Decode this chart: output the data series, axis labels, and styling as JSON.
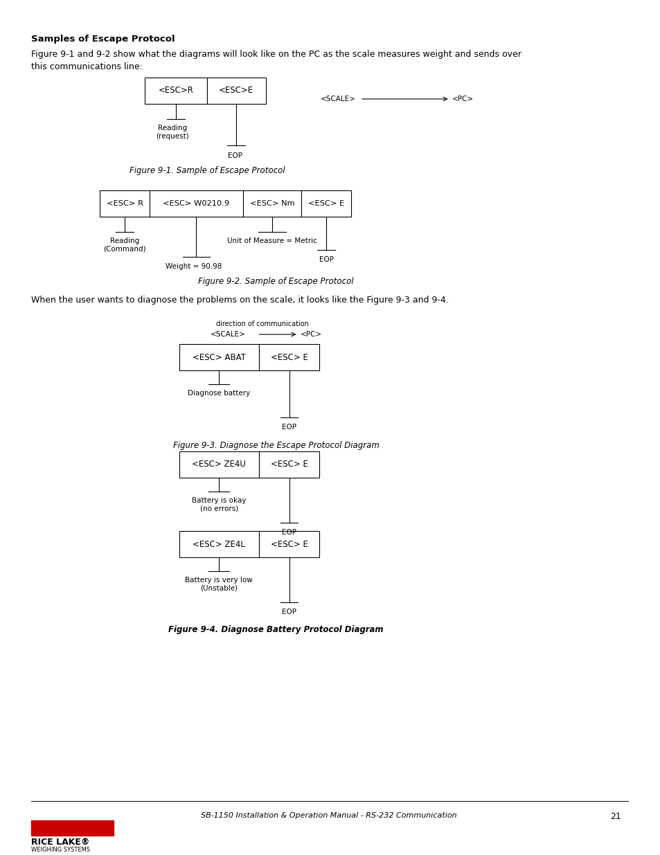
{
  "bg_color": "#ffffff",
  "title_bold": "Samples of Escape Protocol",
  "intro_text": "Figure 9-1 and 9-2 show what the diagrams will look like on the PC as the scale measures weight and sends over\nthis communications line:",
  "fig1_caption": "Figure 9-1. Sample of Escape Protocol",
  "fig2_caption": "Figure 9-2. Sample of Escape Protocol",
  "fig3_caption": "Figure 9-3. Diagnose the Escape Protocol Diagram",
  "fig4_caption": "Figure 9-4. Diagnose Battery Protocol Diagram",
  "diag_text": "When the user wants to diagnose the problems on the scale, it looks like the Figure 9-3 and 9-4.",
  "footer_text": "SB-1150 Installation & Operation Manual - RS-232 Communication",
  "page_num": "21"
}
